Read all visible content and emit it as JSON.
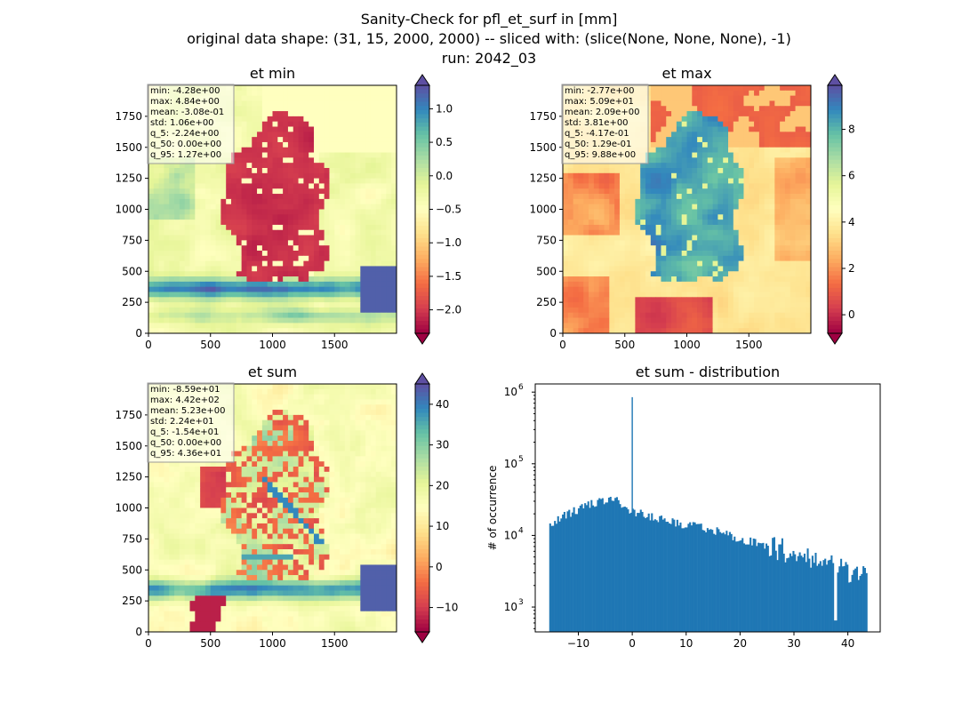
{
  "figure": {
    "title_lines": [
      "Sanity-Check for pfl_et_surf in [mm]",
      "original data shape: (31, 15, 2000, 2000) -- sliced with: (slice(None, None, None), -1)",
      "run: 2042_03"
    ]
  },
  "chart_data": [
    {
      "type": "heatmap",
      "title": "et min",
      "colormap": "Spectral",
      "colorbar_extend": "both",
      "colorbar_ticks": [
        -2.0,
        -1.5,
        -1.0,
        -0.5,
        0.0,
        0.5,
        1.0
      ],
      "colorbar_tick_labels": [
        "−2.0",
        "−1.5",
        "−1.0",
        "−0.5",
        "0.0",
        "0.5",
        "1.0"
      ],
      "colorbar_range": [
        -2.35,
        1.35
      ],
      "x_ticks": [
        0,
        500,
        1000,
        1500
      ],
      "y_ticks": [
        0,
        250,
        500,
        750,
        1000,
        1250,
        1500,
        1750
      ],
      "xlim": [
        0,
        2000
      ],
      "ylim": [
        0,
        2000
      ],
      "stats": [
        "min: -4.28e+00",
        "max: 4.84e+00",
        "mean: -3.08e-01",
        "std: 1.06e+00",
        "q_5: -2.24e+00",
        "q_50: 0.00e+00",
        "q_95: 1.27e+00"
      ]
    },
    {
      "type": "heatmap",
      "title": "et max",
      "colormap": "Spectral",
      "colorbar_extend": "both",
      "colorbar_ticks": [
        0,
        2,
        4,
        6,
        8
      ],
      "colorbar_tick_labels": [
        "0",
        "2",
        "4",
        "6",
        "8"
      ],
      "colorbar_range": [
        -0.8,
        9.9
      ],
      "x_ticks": [
        0,
        500,
        1000,
        1500
      ],
      "y_ticks": [
        0,
        250,
        500,
        750,
        1000,
        1250,
        1500,
        1750
      ],
      "xlim": [
        0,
        2000
      ],
      "ylim": [
        0,
        2000
      ],
      "stats": [
        "min: -2.77e+00",
        "max: 5.09e+01",
        "mean: 2.09e+00",
        "std: 3.81e+00",
        "q_5: -4.17e-01",
        "q_50: 1.29e-01",
        "q_95: 9.88e+00"
      ]
    },
    {
      "type": "heatmap",
      "title": "et sum",
      "colormap": "Spectral",
      "colorbar_extend": "both",
      "colorbar_ticks": [
        -10,
        0,
        10,
        20,
        30,
        40
      ],
      "colorbar_tick_labels": [
        "−10",
        "0",
        "10",
        "20",
        "30",
        "40"
      ],
      "colorbar_range": [
        -16,
        45
      ],
      "x_ticks": [
        0,
        500,
        1000,
        1500
      ],
      "y_ticks": [
        0,
        250,
        500,
        750,
        1000,
        1250,
        1500,
        1750
      ],
      "xlim": [
        0,
        2000
      ],
      "ylim": [
        0,
        2000
      ],
      "stats": [
        "min: -8.59e+01",
        "max: 4.42e+02",
        "mean: 5.23e+00",
        "std: 2.24e+01",
        "q_5: -1.54e+01",
        "q_50: 0.00e+00",
        "q_95: 4.36e+01"
      ]
    },
    {
      "type": "bar",
      "title": "et sum - distribution",
      "xlabel": "",
      "ylabel": "# of occurrence",
      "y_scale": "log",
      "xlim": [
        -18,
        46
      ],
      "ylim": [
        450,
        1300000
      ],
      "x_ticks": [
        -10,
        0,
        10,
        20,
        30,
        40
      ],
      "x_tick_labels": [
        "−10",
        "0",
        "10",
        "20",
        "30",
        "40"
      ],
      "y_ticks": [
        1000,
        10000,
        100000,
        1000000
      ],
      "y_tick_labels": [
        "10",
        "10",
        "10",
        "10"
      ],
      "y_tick_exponents": [
        "3",
        "4",
        "5",
        "6"
      ],
      "bin_range": [
        -15.4,
        43.6
      ],
      "bin_count": 200,
      "envelope": {
        "x": [
          -15.4,
          -14,
          -12,
          -10,
          -8,
          -6,
          -4,
          -2,
          -1,
          0,
          2,
          4,
          6,
          10,
          15,
          20,
          25,
          30,
          35,
          40,
          43.6
        ],
        "y": [
          13000,
          16500,
          20000,
          23000,
          26500,
          30000,
          33000,
          28000,
          24000,
          21000,
          20000,
          18000,
          16000,
          14000,
          12000,
          9000,
          7000,
          5500,
          4000,
          3000,
          2800
        ]
      },
      "spike": {
        "x": 0,
        "y": 850000
      },
      "dip": {
        "x": 37.7,
        "y": 650
      },
      "color": "#1f77b4"
    }
  ]
}
